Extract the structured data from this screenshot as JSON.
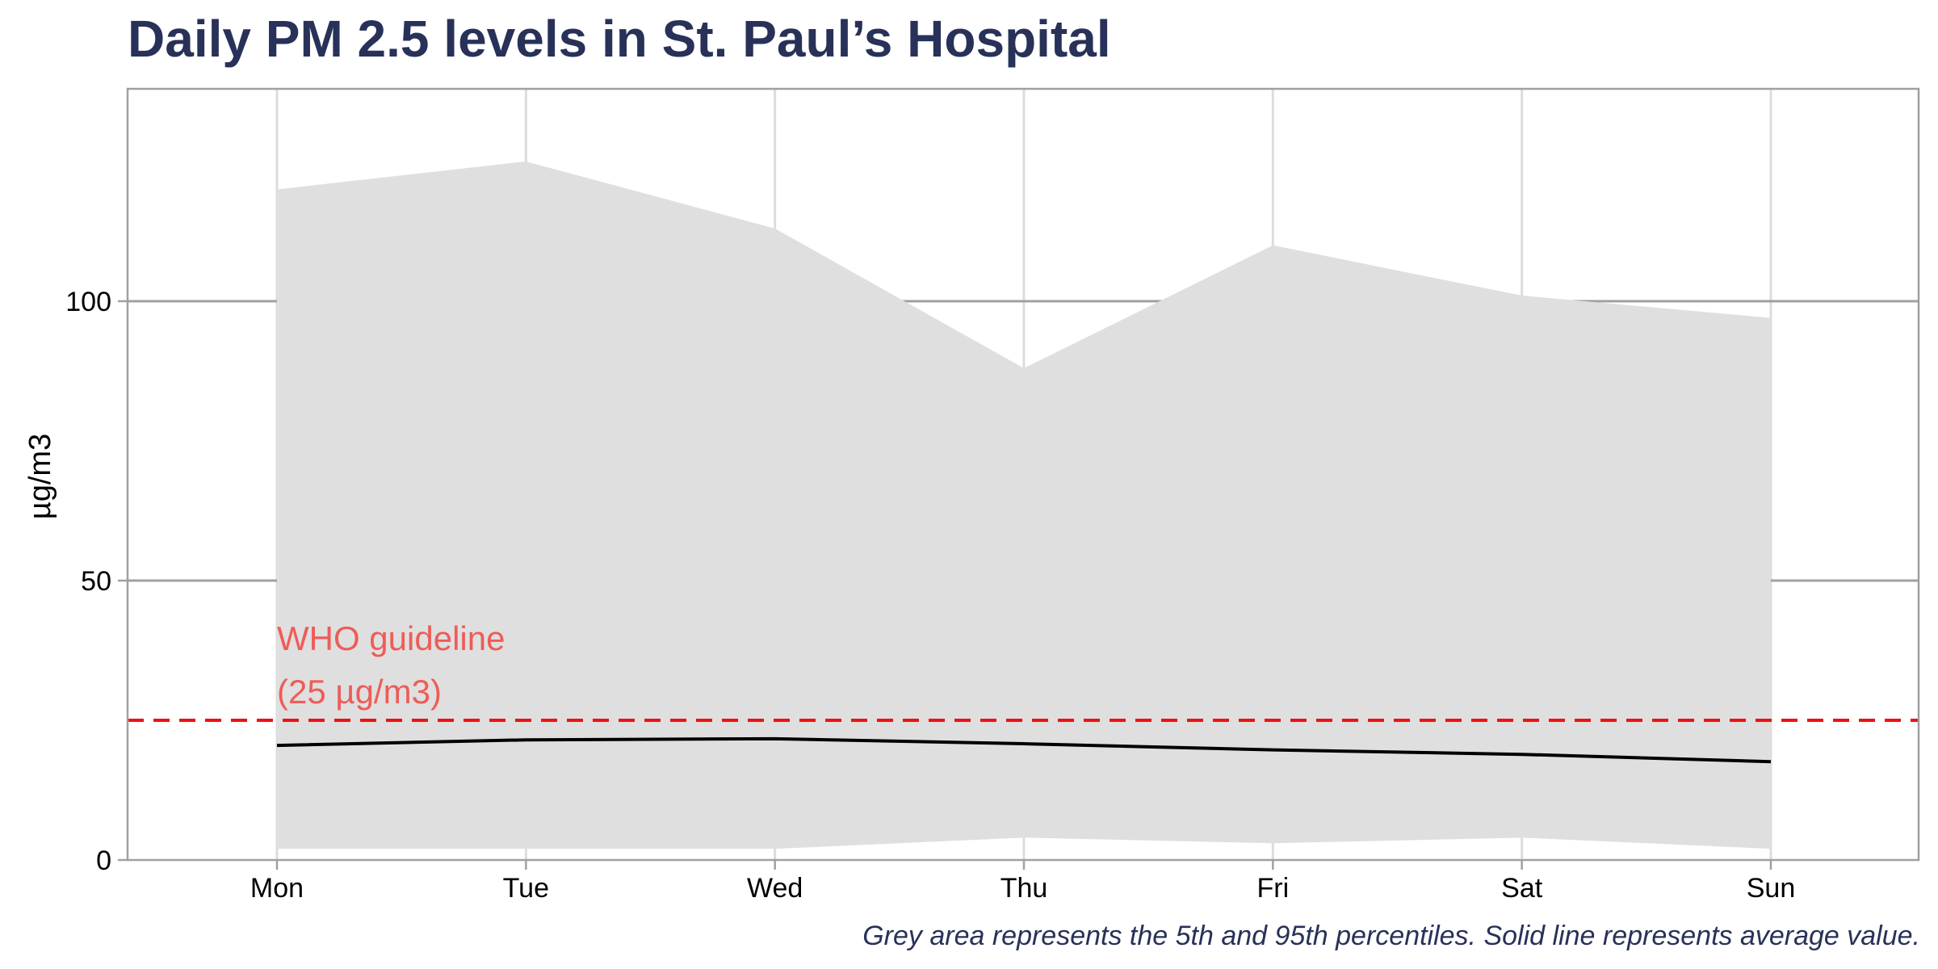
{
  "chart_data": {
    "type": "area",
    "title": "Daily PM 2.5 levels in St. Paul’s Hospital",
    "ylabel": "µg/m3",
    "xlabel": "",
    "categories": [
      "Mon",
      "Tue",
      "Wed",
      "Thu",
      "Fri",
      "Sat",
      "Sun"
    ],
    "ylim": [
      0,
      138
    ],
    "yticks": [
      0,
      50,
      100
    ],
    "series": [
      {
        "values_p5": [
          2,
          2,
          2,
          4,
          3,
          4,
          2
        ],
        "values_p95": [
          120,
          125,
          113,
          88,
          110,
          101,
          97
        ],
        "color": "#dfdfdf"
      },
      {
        "values": [
          20.5,
          21.5,
          21.7,
          20.8,
          19.7,
          18.9,
          17.6
        ],
        "color": "#000000"
      }
    ],
    "reference_line": {
      "y": 25,
      "color": "#ee1111",
      "label_line1": "WHO guideline",
      "label_line2": "(25 µg/m3)",
      "label_color": "#ee5c58"
    },
    "grid": {
      "major_y": true,
      "major_x": true
    },
    "caption": "Grey area represents the 5th and 95th percentiles. Solid line represents average value.",
    "colors": {
      "title": "#283158",
      "caption": "#283158",
      "grid_y": "#a0a0a0",
      "grid_x": "#dcdcdc",
      "panel_border": "#a0a0a0"
    }
  }
}
